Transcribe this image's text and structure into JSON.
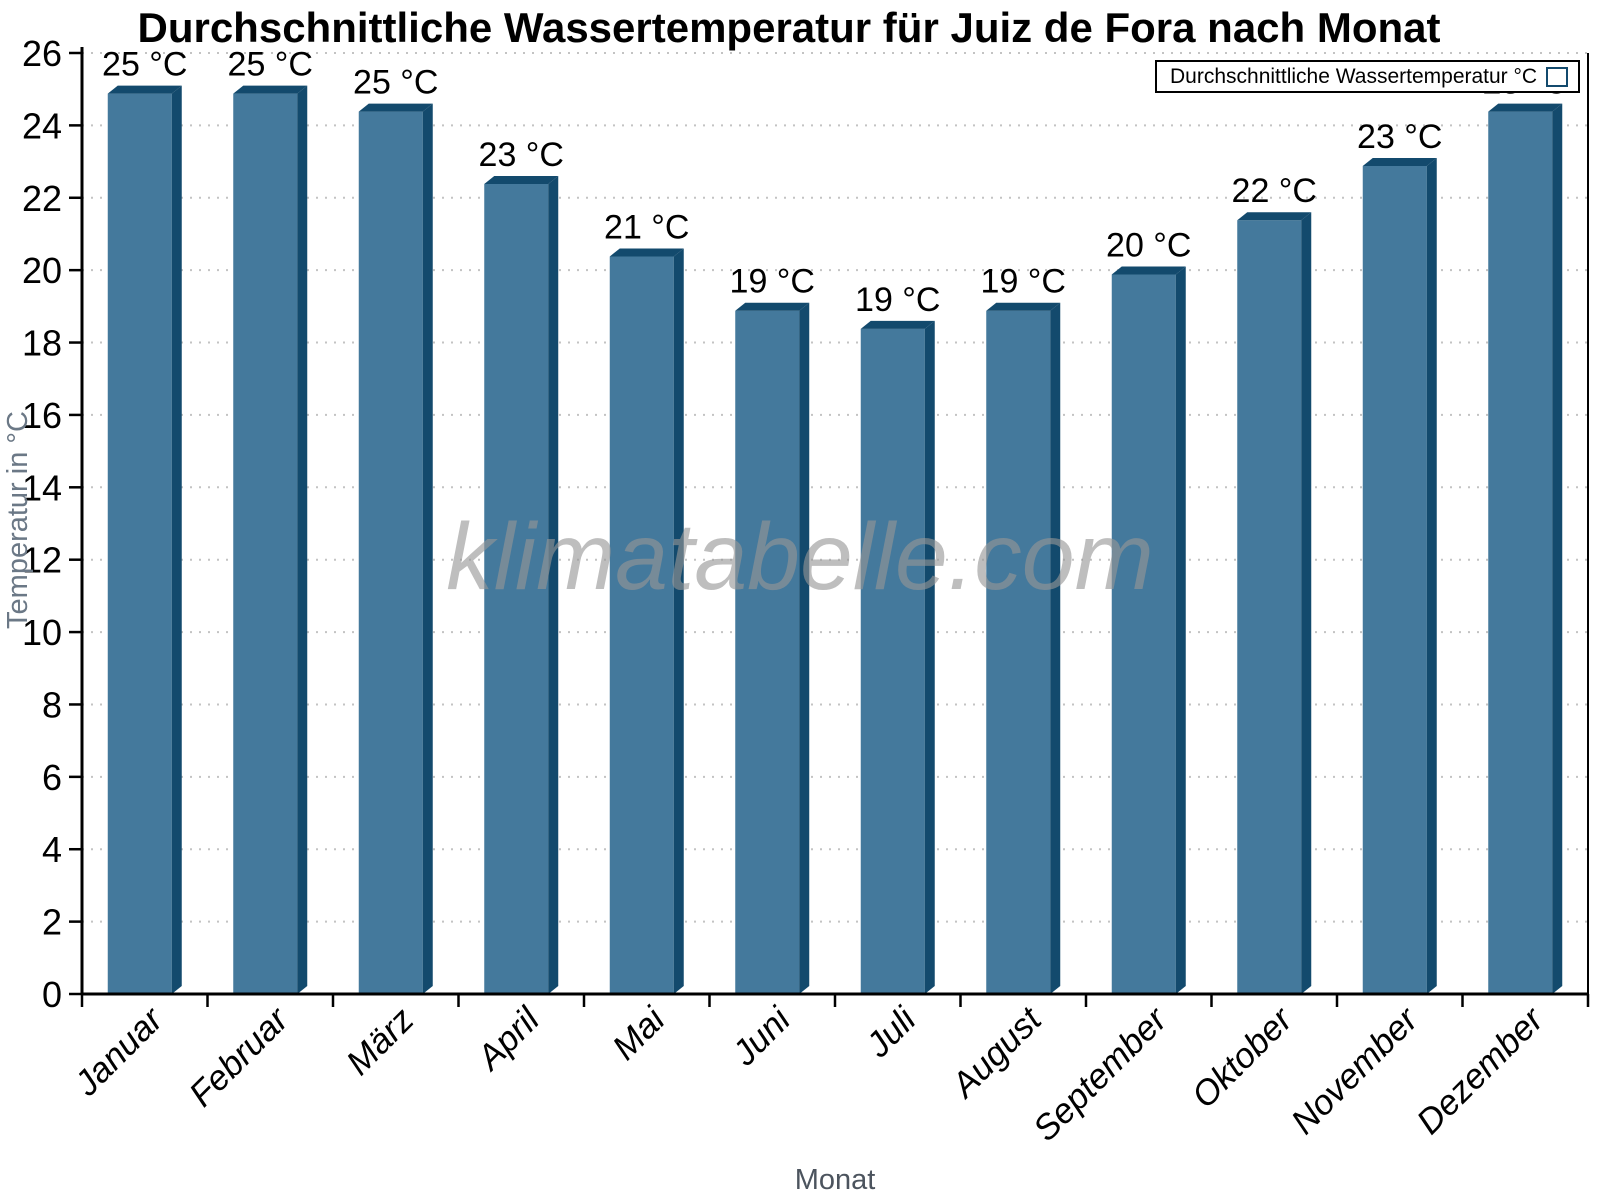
{
  "chart_data": {
    "type": "bar",
    "title": "Durchschnittliche Wassertemperatur für Juiz de Fora nach Monat",
    "legend_label": "Durchschnittliche Wassertemperatur °C",
    "legend_position": "top-right",
    "watermark": "klimatabelle.com",
    "xlabel": "Monat",
    "ylabel": "Temperatur in °C",
    "categories": [
      "Januar",
      "Februar",
      "März",
      "April",
      "Mai",
      "Juni",
      "Juli",
      "August",
      "September",
      "Oktober",
      "November",
      "Dezember"
    ],
    "values": [
      25.1,
      25.1,
      24.6,
      22.6,
      20.6,
      19.1,
      18.6,
      19.1,
      20.1,
      21.6,
      23.1,
      24.6
    ],
    "bar_labels": [
      "25 °C",
      "25 °C",
      "25 °C",
      "23 °C",
      "21 °C",
      "19 °C",
      "19 °C",
      "19 °C",
      "20 °C",
      "22 °C",
      "23 °C",
      "25 °C"
    ],
    "ylim": [
      0,
      26
    ],
    "ytick_step": 2,
    "grid": "horizontal-dotted",
    "colors": {
      "bar_face": "#44799C",
      "bar_edge": "#134A6D",
      "grid": "#c3c3c3",
      "axis": "#000000",
      "tick_label": "#000000",
      "x_axis_title": "#4c545e",
      "y_axis_title": "#6b7886",
      "watermark": "#9e9e9e"
    }
  }
}
